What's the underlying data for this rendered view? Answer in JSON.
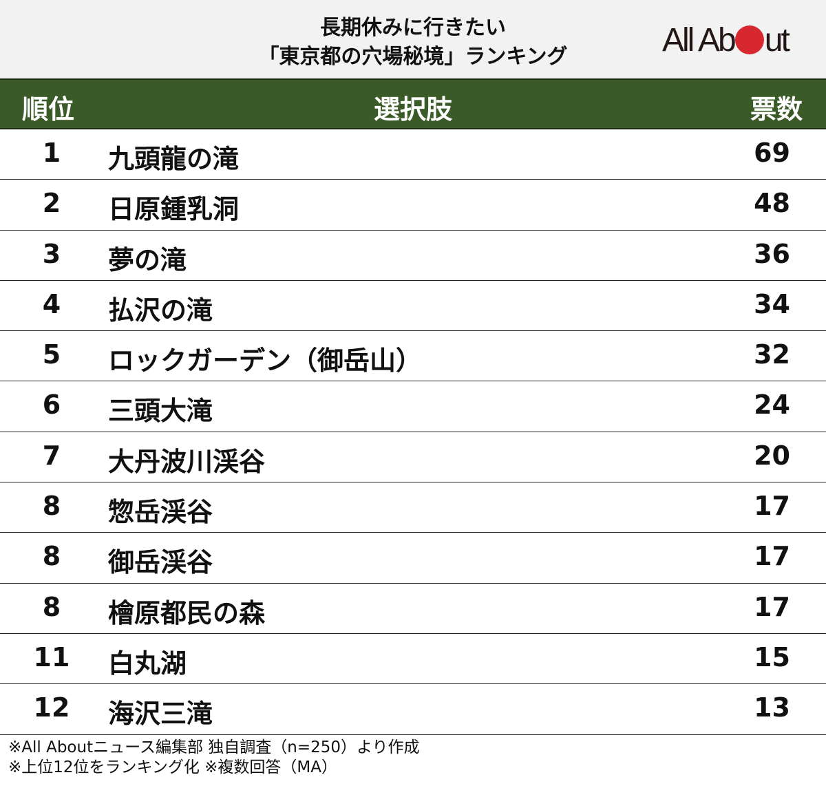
{
  "header": {
    "title_line1": "長期休みに行きたい",
    "title_line2": "「東京都の穴場秘境」ランキング",
    "logo": {
      "text_before": "All Ab",
      "text_after": "ut",
      "dot_color": "#d7282f"
    }
  },
  "table": {
    "columns": [
      "順位",
      "選択肢",
      "票数"
    ],
    "header_color": "#3a5a27",
    "rows": [
      {
        "rank": "1",
        "name": "九頭龍の滝",
        "votes": "69"
      },
      {
        "rank": "2",
        "name": "日原鍾乳洞",
        "votes": "48"
      },
      {
        "rank": "3",
        "name": "夢の滝",
        "votes": "36"
      },
      {
        "rank": "4",
        "name": "払沢の滝",
        "votes": "34"
      },
      {
        "rank": "5",
        "name": "ロックガーデン（御岳山）",
        "votes": "32"
      },
      {
        "rank": "6",
        "name": "三頭大滝",
        "votes": "24"
      },
      {
        "rank": "7",
        "name": "大丹波川渓谷",
        "votes": "20"
      },
      {
        "rank": "8",
        "name": "惣岳渓谷",
        "votes": "17"
      },
      {
        "rank": "8",
        "name": "御岳渓谷",
        "votes": "17"
      },
      {
        "rank": "8",
        "name": "檜原都民の森",
        "votes": "17"
      },
      {
        "rank": "11",
        "name": "白丸湖",
        "votes": "15"
      },
      {
        "rank": "12",
        "name": "海沢三滝",
        "votes": "13"
      }
    ]
  },
  "footer": {
    "line1": "※All Aboutニュース編集部 独自調査（n=250）より作成",
    "line2": "※上位12位をランキング化 ※複数回答（MA）"
  },
  "chart_data": {
    "type": "table",
    "title": "長期休みに行きたい「東京都の穴場秘境」ランキング",
    "columns": [
      "順位",
      "選択肢",
      "票数"
    ],
    "categories": [
      "九頭龍の滝",
      "日原鍾乳洞",
      "夢の滝",
      "払沢の滝",
      "ロックガーデン（御岳山）",
      "三頭大滝",
      "大丹波川渓谷",
      "惣岳渓谷",
      "御岳渓谷",
      "檜原都民の森",
      "白丸湖",
      "海沢三滝"
    ],
    "ranks": [
      1,
      2,
      3,
      4,
      5,
      6,
      7,
      8,
      8,
      8,
      11,
      12
    ],
    "values": [
      69,
      48,
      36,
      34,
      32,
      24,
      20,
      17,
      17,
      17,
      15,
      13
    ],
    "notes": [
      "※All Aboutニュース編集部 独自調査（n=250）より作成",
      "※上位12位をランキング化 ※複数回答（MA）"
    ]
  }
}
